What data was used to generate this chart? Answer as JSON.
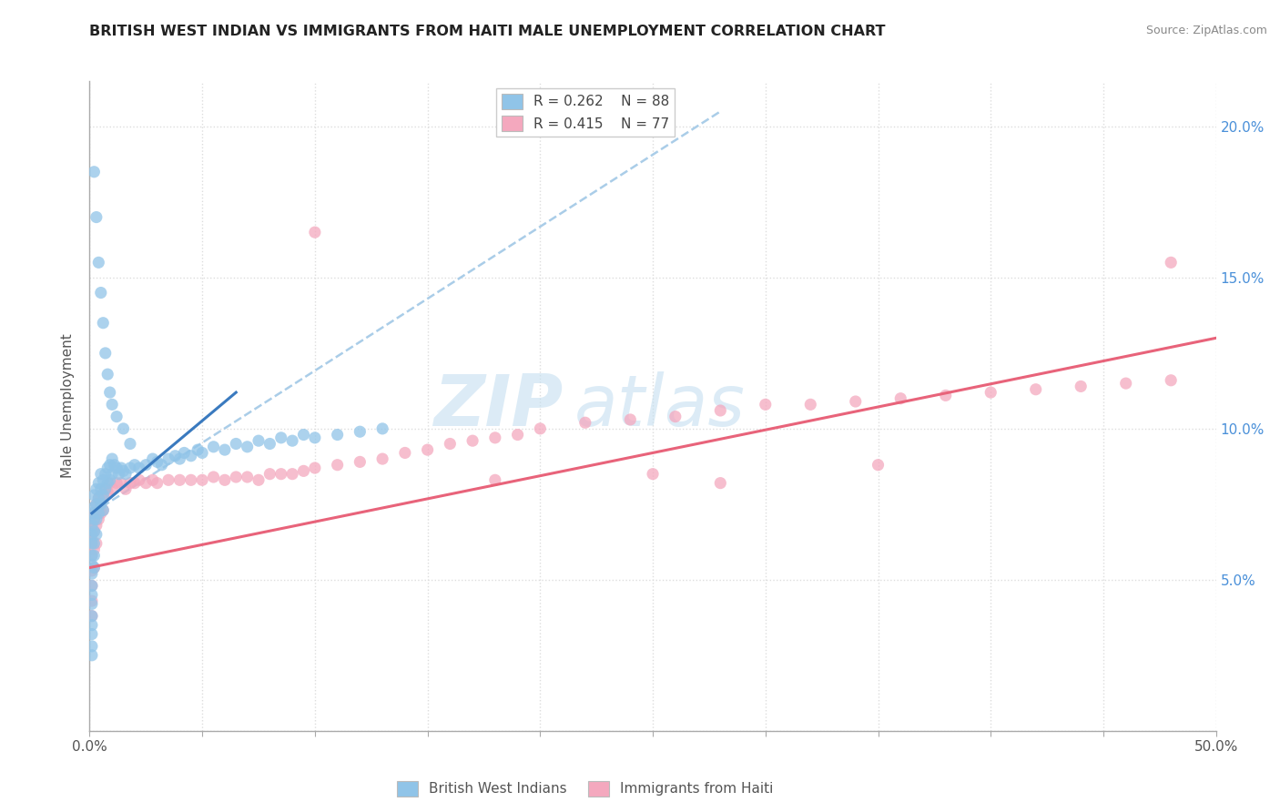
{
  "title": "BRITISH WEST INDIAN VS IMMIGRANTS FROM HAITI MALE UNEMPLOYMENT CORRELATION CHART",
  "source": "Source: ZipAtlas.com",
  "ylabel": "Male Unemployment",
  "xlim": [
    0.0,
    0.5
  ],
  "ylim": [
    0.0,
    0.215
  ],
  "ytick_positions": [
    0.0,
    0.05,
    0.1,
    0.15,
    0.2
  ],
  "ytick_labels": [
    "",
    "5.0%",
    "10.0%",
    "15.0%",
    "20.0%"
  ],
  "xtick_positions": [
    0.0,
    0.05,
    0.1,
    0.15,
    0.2,
    0.25,
    0.3,
    0.35,
    0.4,
    0.45,
    0.5
  ],
  "xtick_labels": [
    "0.0%",
    "",
    "",
    "",
    "",
    "",
    "",
    "",
    "",
    "",
    "50.0%"
  ],
  "legend_r1": "R = 0.262",
  "legend_n1": "N = 88",
  "legend_r2": "R = 0.415",
  "legend_n2": "N = 77",
  "blue_color": "#90c4e8",
  "pink_color": "#f4a8be",
  "blue_line_color": "#3a7abf",
  "pink_line_color": "#e8637a",
  "dashed_line_color": "#aacde8",
  "watermark_text": "ZIPatlas",
  "watermark_zip_color": "#c5dff0",
  "watermark_atlas_color": "#c5dff0",
  "blue_label": "British West Indians",
  "pink_label": "Immigrants from Haiti",
  "blue_scatter_x": [
    0.001,
    0.001,
    0.001,
    0.001,
    0.001,
    0.001,
    0.001,
    0.001,
    0.001,
    0.001,
    0.001,
    0.001,
    0.001,
    0.001,
    0.001,
    0.002,
    0.002,
    0.002,
    0.002,
    0.002,
    0.002,
    0.002,
    0.003,
    0.003,
    0.003,
    0.003,
    0.004,
    0.004,
    0.004,
    0.005,
    0.005,
    0.005,
    0.006,
    0.006,
    0.006,
    0.007,
    0.007,
    0.008,
    0.008,
    0.009,
    0.009,
    0.01,
    0.01,
    0.011,
    0.012,
    0.013,
    0.014,
    0.015,
    0.016,
    0.018,
    0.02,
    0.022,
    0.025,
    0.028,
    0.03,
    0.032,
    0.035,
    0.038,
    0.04,
    0.042,
    0.045,
    0.048,
    0.05,
    0.055,
    0.06,
    0.065,
    0.07,
    0.075,
    0.08,
    0.085,
    0.09,
    0.095,
    0.1,
    0.11,
    0.12,
    0.13,
    0.002,
    0.003,
    0.004,
    0.005,
    0.006,
    0.007,
    0.008,
    0.009,
    0.01,
    0.012,
    0.015,
    0.018
  ],
  "blue_scatter_y": [
    0.072,
    0.068,
    0.065,
    0.062,
    0.058,
    0.055,
    0.052,
    0.048,
    0.045,
    0.042,
    0.038,
    0.035,
    0.032,
    0.028,
    0.025,
    0.078,
    0.074,
    0.07,
    0.066,
    0.062,
    0.058,
    0.054,
    0.08,
    0.075,
    0.07,
    0.065,
    0.082,
    0.077,
    0.072,
    0.085,
    0.08,
    0.075,
    0.083,
    0.078,
    0.073,
    0.085,
    0.08,
    0.087,
    0.082,
    0.088,
    0.083,
    0.09,
    0.085,
    0.088,
    0.087,
    0.085,
    0.087,
    0.086,
    0.085,
    0.087,
    0.088,
    0.087,
    0.088,
    0.09,
    0.089,
    0.088,
    0.09,
    0.091,
    0.09,
    0.092,
    0.091,
    0.093,
    0.092,
    0.094,
    0.093,
    0.095,
    0.094,
    0.096,
    0.095,
    0.097,
    0.096,
    0.098,
    0.097,
    0.098,
    0.099,
    0.1,
    0.185,
    0.17,
    0.155,
    0.145,
    0.135,
    0.125,
    0.118,
    0.112,
    0.108,
    0.104,
    0.1,
    0.095
  ],
  "pink_scatter_x": [
    0.001,
    0.001,
    0.001,
    0.001,
    0.001,
    0.001,
    0.001,
    0.002,
    0.002,
    0.002,
    0.002,
    0.003,
    0.003,
    0.003,
    0.004,
    0.004,
    0.005,
    0.005,
    0.006,
    0.006,
    0.007,
    0.008,
    0.009,
    0.01,
    0.012,
    0.014,
    0.016,
    0.018,
    0.02,
    0.022,
    0.025,
    0.028,
    0.03,
    0.035,
    0.04,
    0.045,
    0.05,
    0.055,
    0.06,
    0.065,
    0.07,
    0.075,
    0.08,
    0.085,
    0.09,
    0.095,
    0.1,
    0.11,
    0.12,
    0.13,
    0.14,
    0.15,
    0.16,
    0.17,
    0.18,
    0.19,
    0.2,
    0.22,
    0.24,
    0.26,
    0.28,
    0.3,
    0.32,
    0.34,
    0.36,
    0.38,
    0.4,
    0.42,
    0.44,
    0.46,
    0.48,
    0.1,
    0.28,
    0.48,
    0.35,
    0.25,
    0.18
  ],
  "pink_scatter_y": [
    0.068,
    0.063,
    0.058,
    0.053,
    0.048,
    0.043,
    0.038,
    0.072,
    0.066,
    0.06,
    0.054,
    0.075,
    0.068,
    0.062,
    0.077,
    0.07,
    0.078,
    0.072,
    0.078,
    0.073,
    0.08,
    0.079,
    0.082,
    0.08,
    0.082,
    0.082,
    0.08,
    0.082,
    0.082,
    0.083,
    0.082,
    0.083,
    0.082,
    0.083,
    0.083,
    0.083,
    0.083,
    0.084,
    0.083,
    0.084,
    0.084,
    0.083,
    0.085,
    0.085,
    0.085,
    0.086,
    0.087,
    0.088,
    0.089,
    0.09,
    0.092,
    0.093,
    0.095,
    0.096,
    0.097,
    0.098,
    0.1,
    0.102,
    0.103,
    0.104,
    0.106,
    0.108,
    0.108,
    0.109,
    0.11,
    0.111,
    0.112,
    0.113,
    0.114,
    0.115,
    0.116,
    0.165,
    0.082,
    0.155,
    0.088,
    0.085,
    0.083
  ],
  "blue_line_x1": 0.001,
  "blue_line_y1": 0.072,
  "blue_line_x2": 0.065,
  "blue_line_y2": 0.112,
  "dashed_line_x1": 0.001,
  "dashed_line_y1": 0.072,
  "dashed_line_x2": 0.28,
  "dashed_line_y2": 0.205,
  "pink_line_x1": 0.0,
  "pink_line_y1": 0.054,
  "pink_line_x2": 0.5,
  "pink_line_y2": 0.13
}
